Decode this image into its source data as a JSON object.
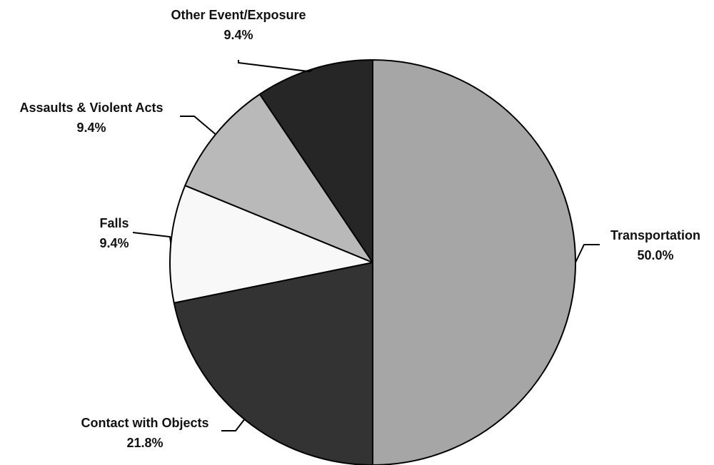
{
  "chart_data": {
    "type": "pie",
    "title": "",
    "start": "12 o'clock",
    "direction": "clockwise",
    "slices": [
      {
        "label": "Transportation",
        "value": 50.0,
        "value_label": "50.0%",
        "color": "#a6a6a6"
      },
      {
        "label": "Contact with Objects",
        "value": 21.8,
        "value_label": "21.8%",
        "color": "#333333"
      },
      {
        "label": "Falls",
        "value": 9.4,
        "value_label": "9.4%",
        "color": "#f8f8f8"
      },
      {
        "label": "Assaults & Violent Acts",
        "value": 9.4,
        "value_label": "9.4%",
        "color": "#b9b9b9"
      },
      {
        "label": "Other Event/Exposure",
        "value": 9.4,
        "value_label": "9.4%",
        "color": "#262626"
      }
    ]
  }
}
